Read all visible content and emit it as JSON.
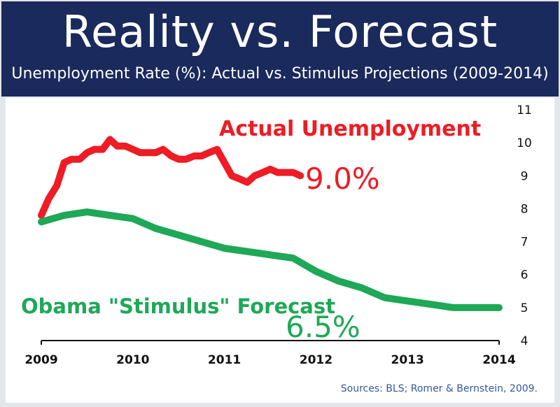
{
  "header": {
    "title": "Reality vs. Forecast",
    "subtitle": "Unemployment Rate (%): Actual vs. Stimulus Projections (2009-2014)"
  },
  "source": "Sources: BLS; Romer & Bernstein, 2009.",
  "colors": {
    "header_bg": "#1a2a5c",
    "actual": "#ee1c24",
    "forecast": "#1ea857"
  },
  "chart_data": {
    "type": "line",
    "title": "Reality vs. Forecast",
    "subtitle": "Unemployment Rate (%): Actual vs. Stimulus Projections (2009-2014)",
    "xlabel": "",
    "ylabel": "",
    "xlim": [
      2009,
      2014
    ],
    "ylim": [
      4,
      11
    ],
    "x_ticks": [
      "2009",
      "2010",
      "2011",
      "2012",
      "2013",
      "2014"
    ],
    "y_ticks": [
      "4",
      "5",
      "6",
      "7",
      "8",
      "9",
      "10",
      "11"
    ],
    "grid": false,
    "series": [
      {
        "name": "Actual Unemployment",
        "color": "#ee1c24",
        "end_label": "9.0%",
        "points": [
          [
            2009.0,
            7.8
          ],
          [
            2009.08,
            8.3
          ],
          [
            2009.17,
            8.7
          ],
          [
            2009.25,
            9.4
          ],
          [
            2009.33,
            9.5
          ],
          [
            2009.42,
            9.5
          ],
          [
            2009.5,
            9.7
          ],
          [
            2009.58,
            9.8
          ],
          [
            2009.67,
            9.8
          ],
          [
            2009.75,
            10.1
          ],
          [
            2009.83,
            9.9
          ],
          [
            2009.92,
            9.9
          ],
          [
            2010.0,
            9.8
          ],
          [
            2010.08,
            9.7
          ],
          [
            2010.17,
            9.7
          ],
          [
            2010.25,
            9.7
          ],
          [
            2010.33,
            9.8
          ],
          [
            2010.42,
            9.6
          ],
          [
            2010.5,
            9.5
          ],
          [
            2010.58,
            9.5
          ],
          [
            2010.67,
            9.6
          ],
          [
            2010.75,
            9.6
          ],
          [
            2010.83,
            9.7
          ],
          [
            2010.92,
            9.8
          ],
          [
            2011.0,
            9.4
          ],
          [
            2011.08,
            9.0
          ],
          [
            2011.17,
            8.9
          ],
          [
            2011.25,
            8.8
          ],
          [
            2011.33,
            9.0
          ],
          [
            2011.42,
            9.1
          ],
          [
            2011.5,
            9.2
          ],
          [
            2011.58,
            9.1
          ],
          [
            2011.67,
            9.1
          ],
          [
            2011.75,
            9.1
          ],
          [
            2011.83,
            9.0
          ]
        ]
      },
      {
        "name": "Obama \"Stimulus\" Forecast",
        "color": "#1ea857",
        "end_label": "6.5%",
        "points": [
          [
            2009.0,
            7.6
          ],
          [
            2009.25,
            7.8
          ],
          [
            2009.5,
            7.9
          ],
          [
            2009.75,
            7.8
          ],
          [
            2010.0,
            7.7
          ],
          [
            2010.25,
            7.4
          ],
          [
            2010.5,
            7.2
          ],
          [
            2010.75,
            7.0
          ],
          [
            2011.0,
            6.8
          ],
          [
            2011.25,
            6.7
          ],
          [
            2011.5,
            6.6
          ],
          [
            2011.75,
            6.5
          ],
          [
            2012.0,
            6.1
          ],
          [
            2012.25,
            5.8
          ],
          [
            2012.5,
            5.6
          ],
          [
            2012.75,
            5.3
          ],
          [
            2013.0,
            5.2
          ],
          [
            2013.25,
            5.1
          ],
          [
            2013.5,
            5.0
          ],
          [
            2013.75,
            5.0
          ],
          [
            2014.0,
            5.0
          ]
        ]
      }
    ],
    "annotations": {
      "actual_label": "Actual Unemployment",
      "forecast_label": "Obama \"Stimulus\" Forecast"
    }
  }
}
